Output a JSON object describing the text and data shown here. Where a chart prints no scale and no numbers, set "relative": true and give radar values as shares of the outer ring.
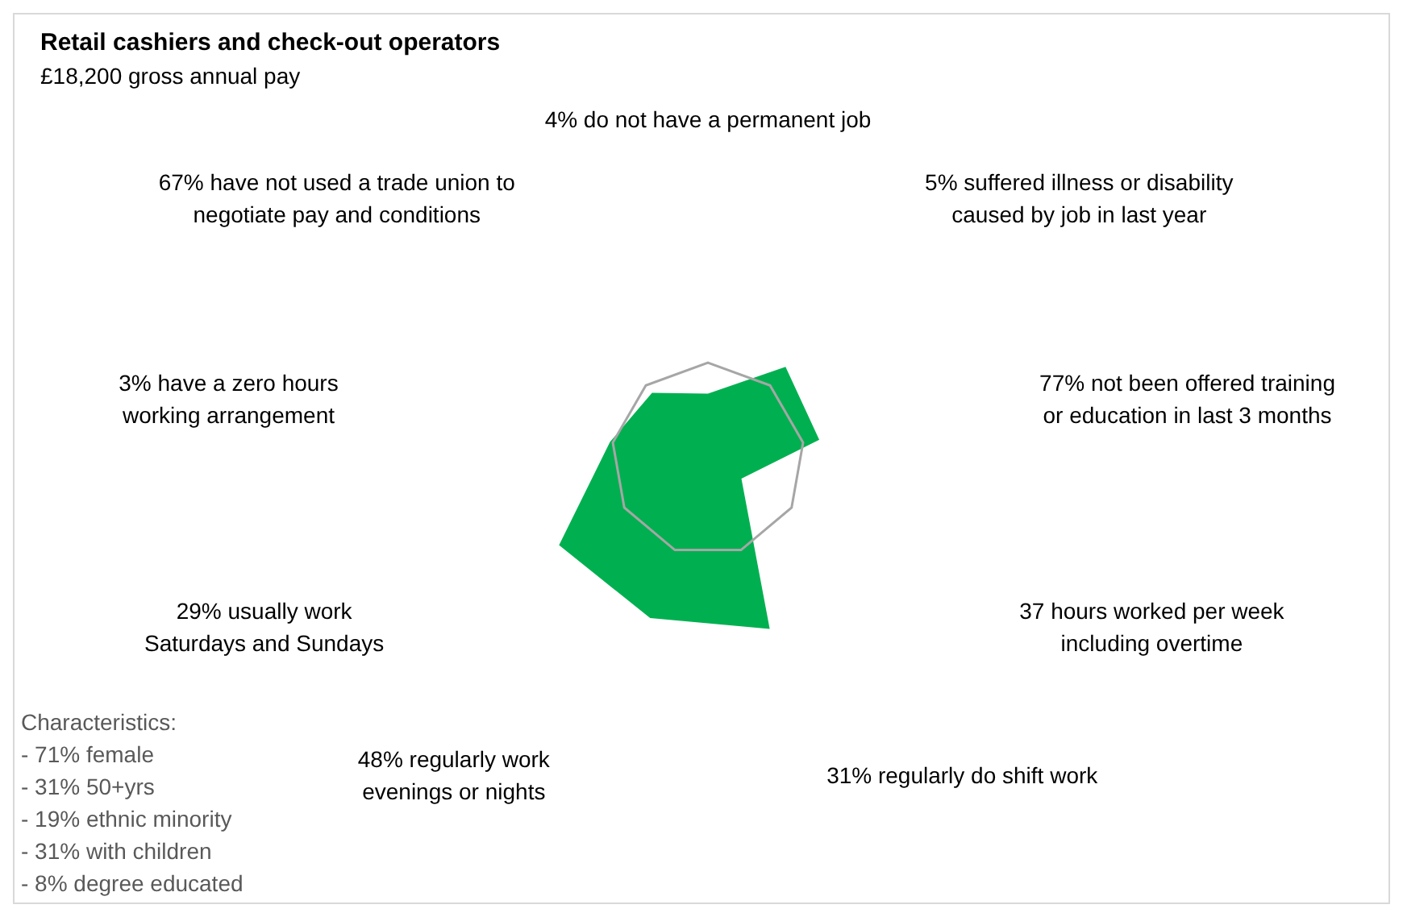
{
  "chart_data": {
    "type": "radar",
    "title": "Retail cashiers and check-out operators",
    "subtitle": "£18,200 gross annual pay",
    "relative": true,
    "legend": false,
    "marker": "none",
    "grid": true,
    "categories": [
      "4% do not have a permanent job",
      "5% suffered illness or disability\ncaused by job in last year",
      "77% not been offered training\nor education in last 3 months",
      "37 hours worked per week\nincluding overtime",
      "31% regularly do shift work",
      "48% regularly work\nevenings or nights",
      "29% usually work\nSaturdays and Sundays",
      "3% have a zero hours\nworking arrangement",
      "67% have not used a trade union to\nnegotiate pay and conditions"
    ],
    "series": [
      {
        "color": "#00b050",
        "values": [
          0.68,
          1.25,
          1.17,
          0.4,
          1.87,
          1.75,
          1.78,
          1.03,
          0.9
        ]
      }
    ],
    "annotations": [
      "Characteristics:\n- 71% female\n- 31% 50+yrs\n- 19% ethnic minority\n- 31% with children\n- 8% degree educated"
    ]
  }
}
